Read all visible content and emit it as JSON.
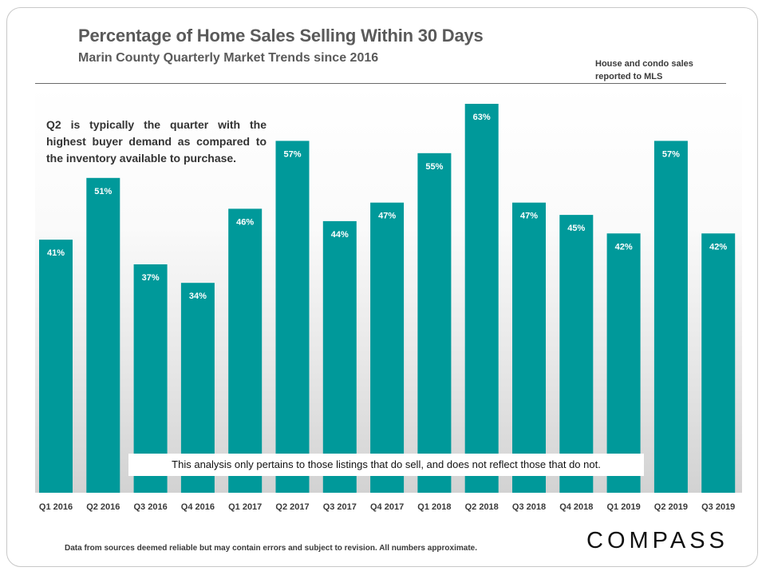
{
  "header": {
    "title": "Percentage of Home Sales Selling Within 30 Days",
    "subtitle": "Marin County Quarterly Market Trends since 2016",
    "source_note": "House and condo sales reported to MLS"
  },
  "callout": "Q2 is typically the quarter with the highest buyer demand as compared to the inventory available to purchase.",
  "disclaimer": "This analysis only pertains to those listings that do sell, and does not reflect those that do not.",
  "footer": "Data from sources deemed reliable but may contain errors and subject to revision. All numbers approximate.",
  "brand": "COMPASS",
  "colors": {
    "bar": "#00999a",
    "label": "#ffffff",
    "tick": "#3a3a3a"
  },
  "chart_data": {
    "type": "bar",
    "title": "Percentage of Home Sales Selling Within 30 Days",
    "subtitle": "Marin County Quarterly Market Trends since 2016",
    "categories": [
      "Q1 2016",
      "Q2 2016",
      "Q3 2016",
      "Q4 2016",
      "Q1 2017",
      "Q2 2017",
      "Q3 2017",
      "Q4 2017",
      "Q1 2018",
      "Q2 2018",
      "Q3 2018",
      "Q4 2018",
      "Q1 2019",
      "Q2 2019",
      "Q3 2019"
    ],
    "values": [
      41,
      51,
      37,
      34,
      46,
      57,
      44,
      47,
      55,
      63,
      47,
      45,
      42,
      57,
      42
    ],
    "data_labels": [
      "41%",
      "51%",
      "37%",
      "34%",
      "46%",
      "57%",
      "44%",
      "47%",
      "55%",
      "63%",
      "47%",
      "45%",
      "42%",
      "57%",
      "42%"
    ],
    "unit": "%",
    "xlabel": "",
    "ylabel": "",
    "ylim": [
      0,
      63
    ],
    "grid": false,
    "legend": "none"
  }
}
